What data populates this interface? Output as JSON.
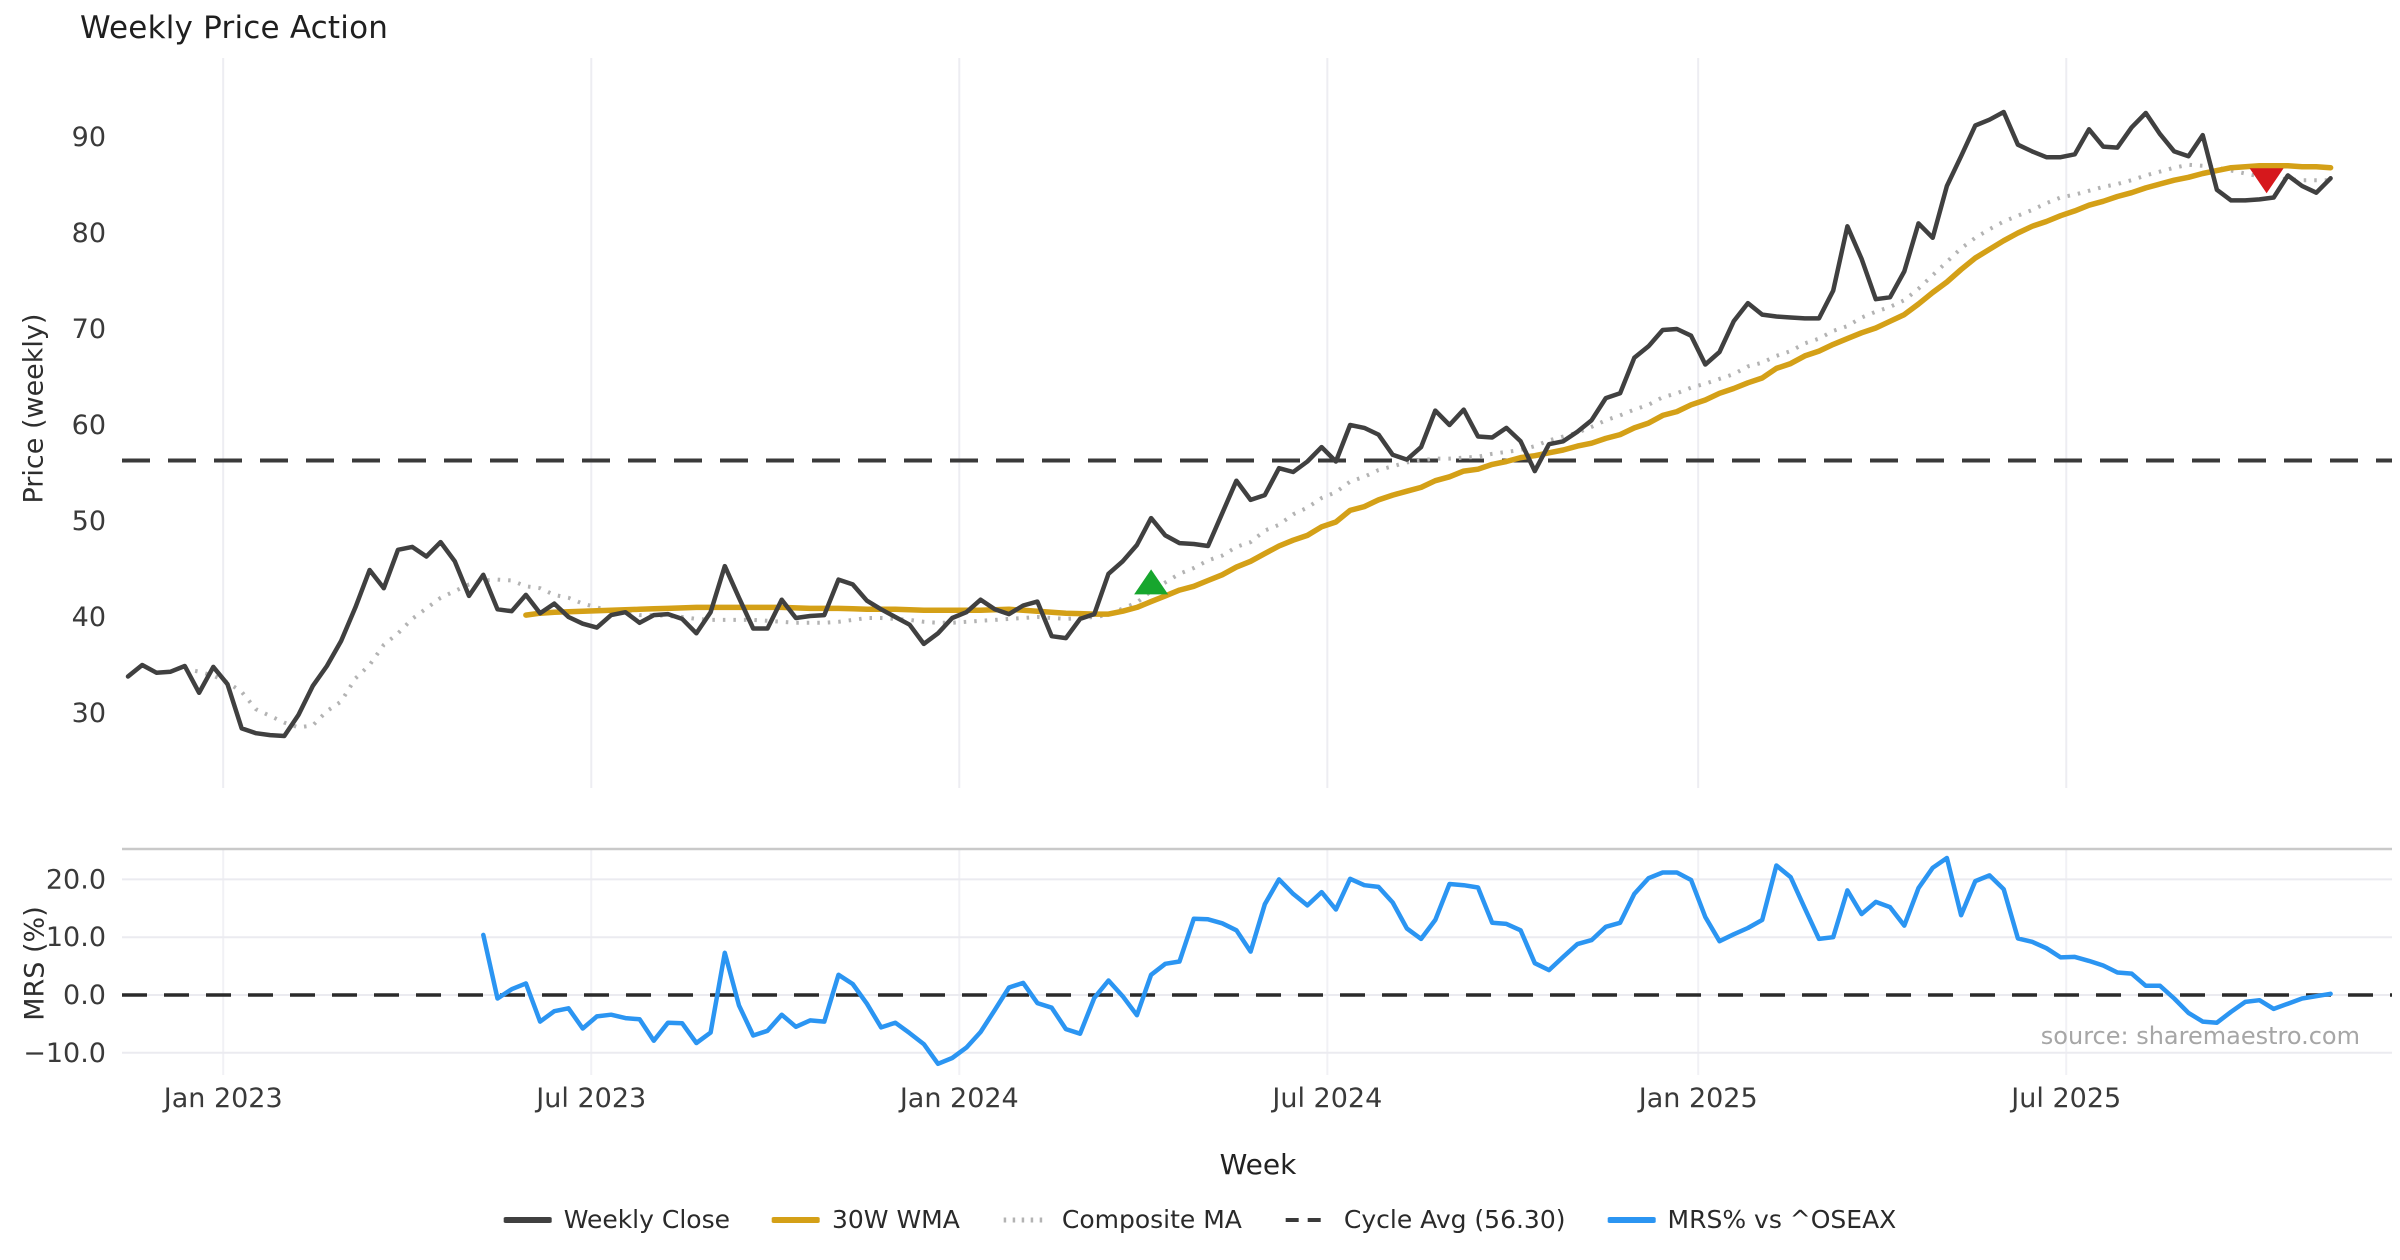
{
  "source_note": "source: sharemaestro.com",
  "legend": {
    "items": [
      {
        "label": "Weekly Close",
        "color": "#404040",
        "style": "solid",
        "width": 6
      },
      {
        "label": "30W WMA",
        "color": "#d4a017",
        "style": "solid",
        "width": 6
      },
      {
        "label": "Composite MA",
        "color": "#b3b3b3",
        "style": "dotted",
        "width": 5
      },
      {
        "label": "Cycle Avg (56.30)",
        "color": "#3a3a3a",
        "style": "dashed",
        "width": 4
      },
      {
        "label": "MRS% vs ^OSEAX",
        "color": "#2b95f2",
        "style": "solid",
        "width": 6
      }
    ]
  },
  "chart_data": [
    {
      "type": "line",
      "title": "Weekly Price Action",
      "ylabel": "Price (weekly)",
      "ylim": [
        23,
        96
      ],
      "grid": "vertical",
      "y_ticks": [
        90,
        80,
        70,
        60,
        50,
        40,
        30
      ],
      "x_ticks": [
        {
          "label": "Jan 2023",
          "week": 6.7
        },
        {
          "label": "Jul 2023",
          "week": 32.6
        },
        {
          "label": "Jan 2024",
          "week": 58.5
        },
        {
          "label": "Jul 2024",
          "week": 84.4
        },
        {
          "label": "Jan 2025",
          "week": 110.5
        },
        {
          "label": "Jul 2025",
          "week": 136.4
        }
      ],
      "x_unit": "week (weekly data, starts mid-Nov 2022)",
      "series": [
        {
          "name": "Weekly Close",
          "color": "#404040",
          "style": "solid",
          "width": 4.5,
          "start_week": 0,
          "values": [
            33.8,
            35.0,
            34.2,
            34.3,
            34.9,
            32.1,
            34.8,
            33.0,
            28.4,
            27.9,
            27.7,
            27.6,
            29.8,
            32.8,
            34.9,
            37.5,
            41.0,
            44.9,
            43.0,
            47.0,
            47.3,
            46.3,
            47.8,
            45.8,
            42.2,
            44.4,
            40.8,
            40.6,
            42.3,
            40.4,
            41.4,
            40.0,
            39.3,
            38.9,
            40.2,
            40.5,
            39.4,
            40.2,
            40.3,
            39.8,
            38.3,
            40.5,
            45.3,
            42.0,
            38.8,
            38.8,
            41.8,
            39.9,
            40.1,
            40.2,
            43.9,
            43.4,
            41.7,
            40.8,
            40.0,
            39.2,
            37.2,
            38.3,
            39.9,
            40.5,
            41.8,
            40.8,
            40.3,
            41.2,
            41.6,
            38.0,
            37.8,
            39.8,
            40.3,
            44.5,
            45.8,
            47.5,
            50.3,
            48.5,
            47.7,
            47.6,
            47.4,
            50.8,
            54.2,
            52.2,
            52.7,
            55.5,
            55.1,
            56.2,
            57.7,
            56.2,
            60.0,
            59.7,
            59.0,
            56.9,
            56.4,
            57.7,
            61.5,
            60.0,
            61.6,
            58.8,
            58.7,
            59.7,
            58.3,
            55.2,
            58.0,
            58.3,
            59.3,
            60.5,
            62.8,
            63.3,
            67.0,
            68.2,
            69.9,
            70.0,
            69.3,
            66.3,
            67.6,
            70.8,
            72.7,
            71.5,
            71.3,
            71.2,
            71.1,
            71.1,
            74.0,
            80.7,
            77.3,
            73.1,
            73.3,
            76.0,
            81.0,
            79.5,
            84.9,
            88.0,
            91.2,
            91.8,
            92.6,
            89.2,
            88.5,
            87.9,
            87.9,
            88.2,
            90.8,
            89.0,
            88.9,
            91.0,
            92.5,
            90.3,
            88.5,
            88.0,
            90.2,
            84.5,
            83.4,
            83.4,
            83.5,
            83.7,
            86.0,
            84.9,
            84.2,
            85.7
          ]
        },
        {
          "name": "30W WMA",
          "color": "#d4a017",
          "style": "solid",
          "width": 5.5,
          "start_week": 28,
          "values": [
            40.2,
            40.4,
            40.5,
            40.55,
            40.6,
            40.65,
            40.7,
            40.75,
            40.8,
            40.85,
            40.9,
            40.95,
            41.0,
            41.0,
            41.0,
            41.0,
            41.0,
            41.0,
            41.0,
            40.95,
            40.9,
            40.9,
            40.9,
            40.85,
            40.8,
            40.8,
            40.8,
            40.75,
            40.7,
            40.7,
            40.7,
            40.7,
            40.7,
            40.75,
            40.8,
            40.7,
            40.6,
            40.5,
            40.4,
            40.35,
            40.3,
            40.3,
            40.6,
            41.0,
            41.6,
            42.2,
            42.8,
            43.2,
            43.8,
            44.4,
            45.2,
            45.8,
            46.6,
            47.4,
            48.0,
            48.5,
            49.4,
            49.9,
            51.1,
            51.5,
            52.2,
            52.7,
            53.1,
            53.5,
            54.2,
            54.6,
            55.2,
            55.4,
            55.9,
            56.2,
            56.6,
            56.8,
            57.1,
            57.4,
            57.8,
            58.1,
            58.6,
            59.0,
            59.7,
            60.2,
            61.0,
            61.4,
            62.1,
            62.6,
            63.3,
            63.8,
            64.4,
            64.9,
            65.9,
            66.4,
            67.2,
            67.7,
            68.4,
            69.0,
            69.6,
            70.1,
            70.8,
            71.5,
            72.6,
            73.8,
            74.9,
            76.2,
            77.4,
            78.3,
            79.2,
            80.0,
            80.7,
            81.2,
            81.8,
            82.3,
            82.9,
            83.3,
            83.8,
            84.2,
            84.7,
            85.1,
            85.5,
            85.8,
            86.2,
            86.5,
            86.8,
            86.9,
            87.0,
            87.0,
            87.0,
            86.9,
            86.9,
            86.8
          ]
        },
        {
          "name": "Composite MA",
          "color": "#b3b3b3",
          "style": "dotted",
          "width": 4,
          "start_week": 4,
          "values": [
            34.6,
            34.3,
            33.9,
            33.2,
            32.2,
            30.4,
            29.7,
            29.0,
            28.5,
            28.7,
            30.2,
            31.2,
            33.6,
            35.0,
            37.1,
            38.3,
            39.8,
            40.9,
            42.0,
            42.7,
            43.4,
            43.8,
            43.9,
            43.8,
            43.2,
            43.0,
            42.3,
            42.0,
            41.4,
            41.0,
            40.6,
            40.5,
            40.2,
            40.2,
            40.1,
            40.0,
            39.8,
            39.7,
            39.7,
            39.7,
            39.7,
            39.6,
            39.5,
            39.4,
            39.4,
            39.4,
            39.5,
            39.7,
            39.9,
            39.9,
            39.8,
            39.7,
            39.5,
            39.4,
            39.4,
            39.5,
            39.6,
            39.7,
            39.8,
            39.9,
            40.0,
            39.9,
            39.8,
            39.9,
            40.0,
            40.2,
            40.9,
            41.5,
            42.7,
            43.6,
            44.5,
            45.1,
            45.9,
            46.4,
            47.3,
            47.8,
            49.0,
            49.6,
            50.7,
            51.4,
            52.4,
            53.0,
            54.1,
            54.6,
            55.3,
            55.7,
            56.1,
            56.3,
            56.5,
            56.5,
            56.6,
            56.7,
            57.0,
            57.2,
            57.4,
            57.8,
            58.4,
            58.8,
            59.2,
            59.8,
            60.5,
            61.0,
            61.6,
            62.1,
            62.9,
            63.3,
            63.9,
            64.3,
            64.8,
            65.3,
            66.1,
            66.5,
            67.2,
            67.7,
            68.5,
            69.0,
            69.8,
            70.3,
            71.2,
            71.8,
            72.3,
            73.0,
            74.2,
            75.6,
            77.0,
            78.4,
            79.5,
            80.4,
            81.2,
            81.8,
            82.4,
            83.1,
            83.7,
            84.0,
            84.4,
            84.8,
            85.1,
            85.5,
            86.0,
            86.4,
            86.8,
            87.1,
            87.0,
            86.8,
            86.5,
            86.2,
            85.9,
            85.7,
            85.6,
            85.5,
            85.5,
            85.5
          ]
        },
        {
          "name": "Cycle Avg (56.30)",
          "color": "#3a3a3a",
          "style": "dashed",
          "width": 4,
          "value": 56.3
        }
      ],
      "markers": [
        {
          "week": 72,
          "value": 43.5,
          "shape": "triangle-up",
          "color": "#17a62e"
        },
        {
          "week": 150.5,
          "value": 85.6,
          "shape": "triangle-down",
          "color": "#d6181c"
        }
      ]
    },
    {
      "type": "line",
      "ylabel": "MRS (%)",
      "xlabel": "Week",
      "ylim": [
        -14,
        25.3
      ],
      "grid": "horizontal",
      "y_ticks": [
        {
          "label": "20.0",
          "value": 20
        },
        {
          "label": "10.0",
          "value": 10
        },
        {
          "label": "0.0",
          "value": 0
        },
        {
          "label": "−10.0",
          "value": -10
        }
      ],
      "series": [
        {
          "name": "MRS% vs ^OSEAX",
          "color": "#2b95f2",
          "style": "solid",
          "width": 4.5,
          "start_week": 25,
          "values": [
            10.4,
            -0.6,
            1.0,
            2.0,
            -4.6,
            -2.8,
            -2.3,
            -5.8,
            -3.7,
            -3.4,
            -4.0,
            -4.2,
            -7.9,
            -4.8,
            -4.9,
            -8.3,
            -6.5,
            7.3,
            -1.8,
            -7.0,
            -6.2,
            -3.4,
            -5.5,
            -4.4,
            -4.6,
            3.5,
            1.9,
            -1.5,
            -5.6,
            -4.8,
            -6.6,
            -8.5,
            -11.9,
            -10.9,
            -9.1,
            -6.4,
            -2.6,
            1.3,
            2.1,
            -1.4,
            -2.2,
            -5.9,
            -6.7,
            -0.5,
            2.5,
            -0.2,
            -3.5,
            3.5,
            5.4,
            5.8,
            13.2,
            13.1,
            12.4,
            11.2,
            7.5,
            15.7,
            20.0,
            17.5,
            15.5,
            17.8,
            14.8,
            20.1,
            19.0,
            18.7,
            16.0,
            11.5,
            9.7,
            13.0,
            19.2,
            19.0,
            18.6,
            12.5,
            12.3,
            11.2,
            5.5,
            4.3,
            6.6,
            8.8,
            9.5,
            11.8,
            12.5,
            17.5,
            20.2,
            21.2,
            21.2,
            19.9,
            13.5,
            9.3,
            10.5,
            11.6,
            13.0,
            22.4,
            20.4,
            15.0,
            9.7,
            10.0,
            18.1,
            14.0,
            16.1,
            15.2,
            12.0,
            18.5,
            22.0,
            23.7,
            13.8,
            19.7,
            20.7,
            18.3,
            9.8,
            9.2,
            8.1,
            6.5,
            6.6,
            5.9,
            5.1,
            3.9,
            3.7,
            1.6,
            1.6,
            -0.6,
            -3.1,
            -4.6,
            -4.8,
            -2.9,
            -1.2,
            -0.9,
            -2.4,
            -1.5,
            -0.6,
            -0.2,
            0.2
          ]
        },
        {
          "name": "Zero line",
          "color": "#2a2a2a",
          "style": "dashed",
          "width": 3.5,
          "value": 0.0
        }
      ]
    }
  ]
}
